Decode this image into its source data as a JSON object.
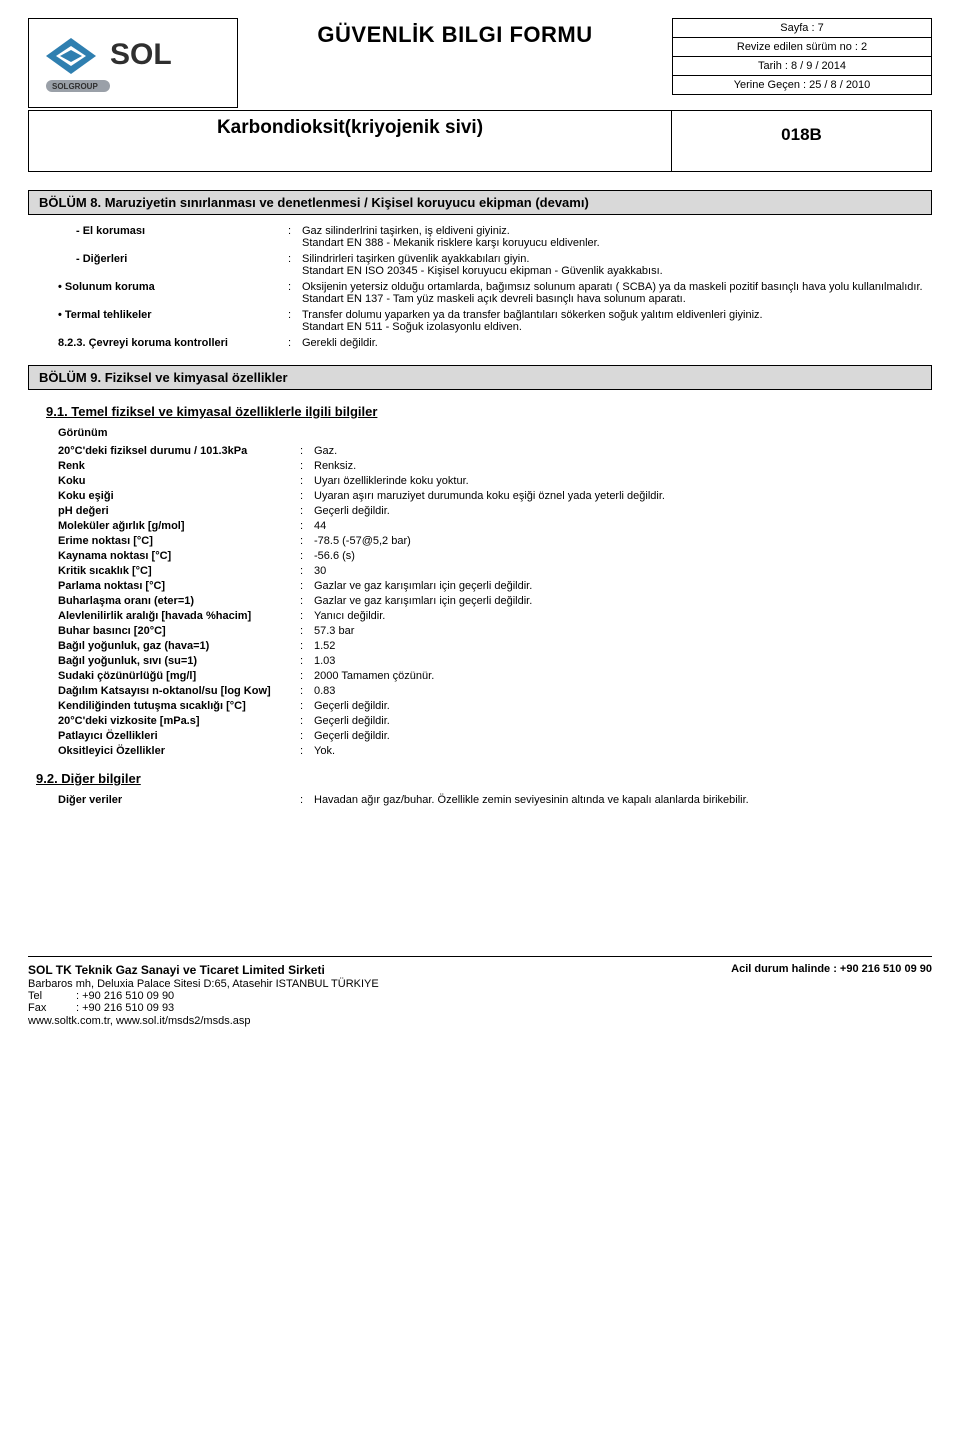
{
  "header": {
    "main_title": "GÜVENLİK BILGI FORMU",
    "meta": {
      "page": "Sayfa : 7",
      "revision": "Revize edilen sürüm no : 2",
      "date": "Tarih : 8 / 9 / 2014",
      "supersedes": "Yerine Geçen : 25 / 8 / 2010"
    },
    "product_name": "Karbondioksit(kriyojenik sivi)",
    "code": "018B",
    "logo_text_main": "SOL",
    "logo_text_sub": "SOLGROUP",
    "logo_colors": {
      "diamond": "#2f7fb0",
      "text": "#2f2f2f",
      "sub_bar": "#9aa0a8"
    }
  },
  "section8": {
    "title": "BÖLÜM 8.  Maruziyetin sınırlanması ve denetlenmesi / Kişisel koruyucu ekipman  (devamı)",
    "rows": [
      {
        "label": "- El koruması",
        "indent": "sub",
        "value": "Gaz silinderlrini taşirken, iş eldiveni giyiniz.\nStandart EN 388 - Mekanik risklere karşı koruyucu eldivenler."
      },
      {
        "label": "- Diğerleri",
        "indent": "sub",
        "value": "Silindrirleri taşirken güvenlik ayakkabıları giyin.\nStandart EN ISO 20345 - Kişisel koruyucu ekipman - Güvenlik ayakkabısı."
      },
      {
        "label": "• Solunum koruma",
        "indent": "bullet",
        "value": "Oksijenin yetersiz olduğu ortamlarda, bağımsız solunum aparatı ( SCBA) ya da maskeli pozitif basınçlı hava yolu kullanılmalıdır.\nStandart EN 137 - Tam yüz maskeli açık devreli basınçlı hava solunum aparatı."
      },
      {
        "label": "• Termal tehlikeler",
        "indent": "bullet",
        "value": "Transfer dolumu yaparken ya da transfer bağlantıları sökerken soğuk yalıtım eldivenleri giyiniz.\nStandart EN 511 - Soğuk izolasyonlu eldiven."
      },
      {
        "label": "8.2.3.  Çevreyi koruma kontrolleri",
        "indent": "num",
        "value": "Gerekli değildir."
      }
    ]
  },
  "section9": {
    "title": "BÖLÜM 9.  Fiziksel ve kimyasal özellikler",
    "sub1_title": "9.1.  Temel fiziksel ve kimyasal özelliklerle ilgili bilgiler",
    "appearance_label": "Görünüm",
    "properties": [
      {
        "label": "20°C'deki fiziksel durumu / 101.3kPa",
        "value": "Gaz."
      },
      {
        "label": "Renk",
        "value": "Renksiz."
      },
      {
        "label": "Koku",
        "value": "Uyarı özelliklerinde koku yoktur."
      },
      {
        "label": "Koku eşiği",
        "value": "Uyaran aşırı maruziyet durumunda koku eşiği öznel yada yeterli değildir."
      },
      {
        "label": "pH değeri",
        "value": "Geçerli değildir."
      },
      {
        "label": "Moleküler ağırlık [g/mol]",
        "value": "44"
      },
      {
        "label": "Erime noktası [°C]",
        "value": "-78.5     (-57@5,2 bar)"
      },
      {
        "label": "Kaynama noktası [°C]",
        "value": "-56.6 (s)"
      },
      {
        "label": "Kritik sıcaklık [°C]",
        "value": "30"
      },
      {
        "label": "Parlama noktası [°C]",
        "value": "Gazlar ve gaz karışımları için geçerli değildir."
      },
      {
        "label": "Buharlaşma oranı (eter=1)",
        "value": "Gazlar ve gaz karışımları için geçerli değildir."
      },
      {
        "label": "Alevlenilirlik aralığı [havada %hacim]",
        "value": "Yanıcı değildir."
      },
      {
        "label": "Buhar basıncı [20°C]",
        "value": "57.3 bar"
      },
      {
        "label": "Bağıl yoğunluk, gaz (hava=1)",
        "value": "1.52"
      },
      {
        "label": "Bağıl yoğunluk, sıvı (su=1)",
        "value": "1.03"
      },
      {
        "label": "Sudaki çözünürlüğü [mg/l]",
        "value": "2000 Tamamen çözünür."
      },
      {
        "label": "Dağılım Katsayısı n-oktanol/su  [log Kow]",
        "value": "0.83"
      },
      {
        "label": "Kendiliğinden tutuşma sıcaklığı [°C]",
        "value": "Geçerli değildir."
      },
      {
        "label": "20°C'deki vizkosite  [mPa.s]",
        "value": "Geçerli değildir."
      },
      {
        "label": "Patlayıcı Özellikleri",
        "value": "Geçerli değildir."
      },
      {
        "label": "Oksitleyici Özellikler",
        "value": "Yok."
      }
    ],
    "sub2_title": "9.2.  Diğer bilgiler",
    "other_label": "Diğer veriler",
    "other_value": "Havadan ağır gaz/buhar. Özellikle zemin seviyesinin altında ve kapalı alanlarda birikebilir."
  },
  "footer": {
    "company": "SOL TK Teknik Gaz Sanayi ve Ticaret Limited Sirketi",
    "address": "Barbaros mh, Deluxia Palace Sitesi D:65, Atasehir    ISTANBUL  TÜRKIYE",
    "tel_label": "Tel",
    "tel": ": +90 216 510 09 90",
    "fax_label": "Fax",
    "fax": ": +90 216 510 09 93",
    "web": "www.soltk.com.tr, www.sol.it/msds2/msds.asp",
    "emergency": "Acil durum halinde : +90 216 510 09 90"
  }
}
